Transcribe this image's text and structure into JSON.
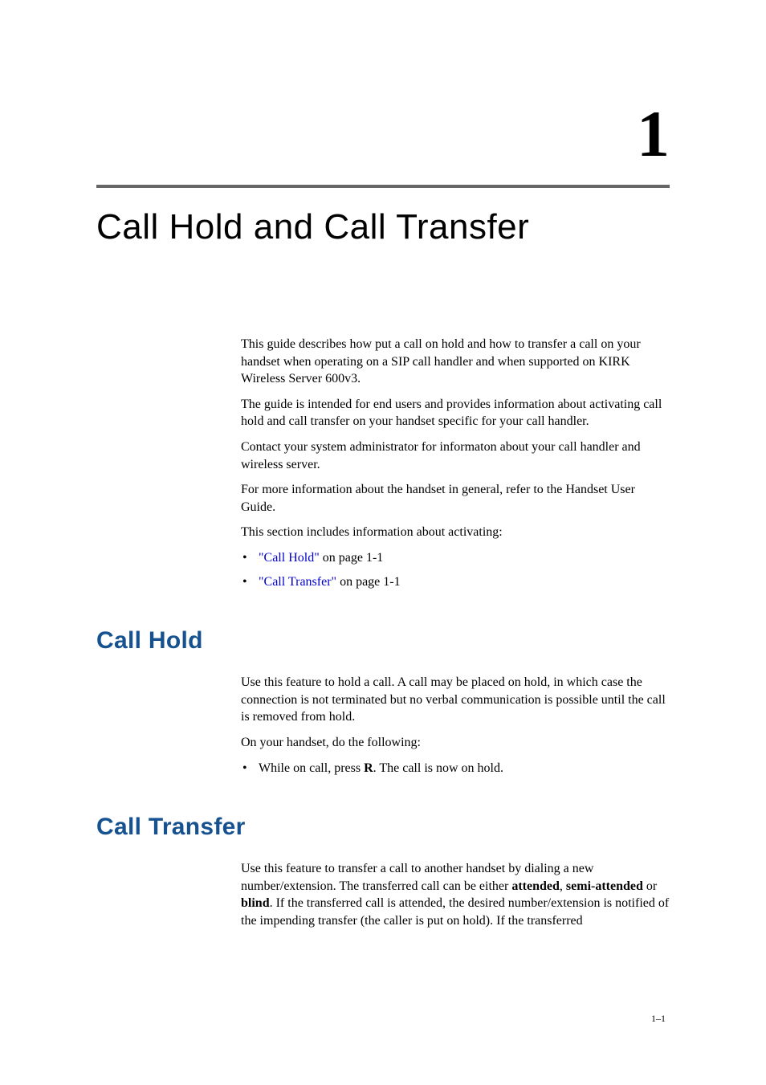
{
  "chapter": {
    "number": "1",
    "title": "Call Hold and Call Transfer"
  },
  "intro": {
    "p1": "This guide describes how put a call on hold and how to transfer a call on your handset when operating on a SIP call handler and when supported on KIRK Wireless Server 600v3.",
    "p2": "The guide is intended for end users and provides information about activating call hold and call transfer on your handset specific for your call handler.",
    "p3": "Contact your system administrator for informaton about your call handler and wireless server.",
    "p4": "For more information about the handset in general, refer to the Handset User Guide.",
    "p5": "This section includes information about activating:",
    "link1_text": "\"Call Hold\"",
    "link1_suffix": " on page 1-1",
    "link2_text": "\"Call Transfer\"",
    "link2_suffix": " on page 1-1"
  },
  "section_call_hold": {
    "heading": "Call Hold",
    "p1": "Use this feature to hold a call. A call may be placed on hold, in which case the connection is not terminated but no verbal communication is possible until the call is removed from hold.",
    "p2": "On your handset, do the following:",
    "li1_prefix": "While on call, press ",
    "li1_bold": "R",
    "li1_suffix": ". The call is now on hold."
  },
  "section_call_transfer": {
    "heading": "Call Transfer",
    "p1_a": "Use this feature to transfer a call to another handset by dialing a new number/extension. The transferred call can be either ",
    "p1_b1": "attended",
    "p1_c": ", ",
    "p1_b2": "semi-attended",
    "p1_d": " or ",
    "p1_b3": "blind",
    "p1_e": ". If the transferred call is attended, the desired number/extension is notified of the impending transfer (the caller is put on hold). If the transferred"
  },
  "page_number": "1–1",
  "colors": {
    "heading_blue": "#16528f",
    "link_blue": "#0000cc",
    "rule_gray": "#666666",
    "text_black": "#000000",
    "background": "#ffffff"
  },
  "typography": {
    "body_font": "Book Antiqua / Palatino serif",
    "heading_font": "Futura / Century Gothic sans-serif",
    "chapter_number_size": 82,
    "chapter_title_size": 44,
    "section_heading_size": 30,
    "body_size": 16,
    "page_number_size": 12
  }
}
